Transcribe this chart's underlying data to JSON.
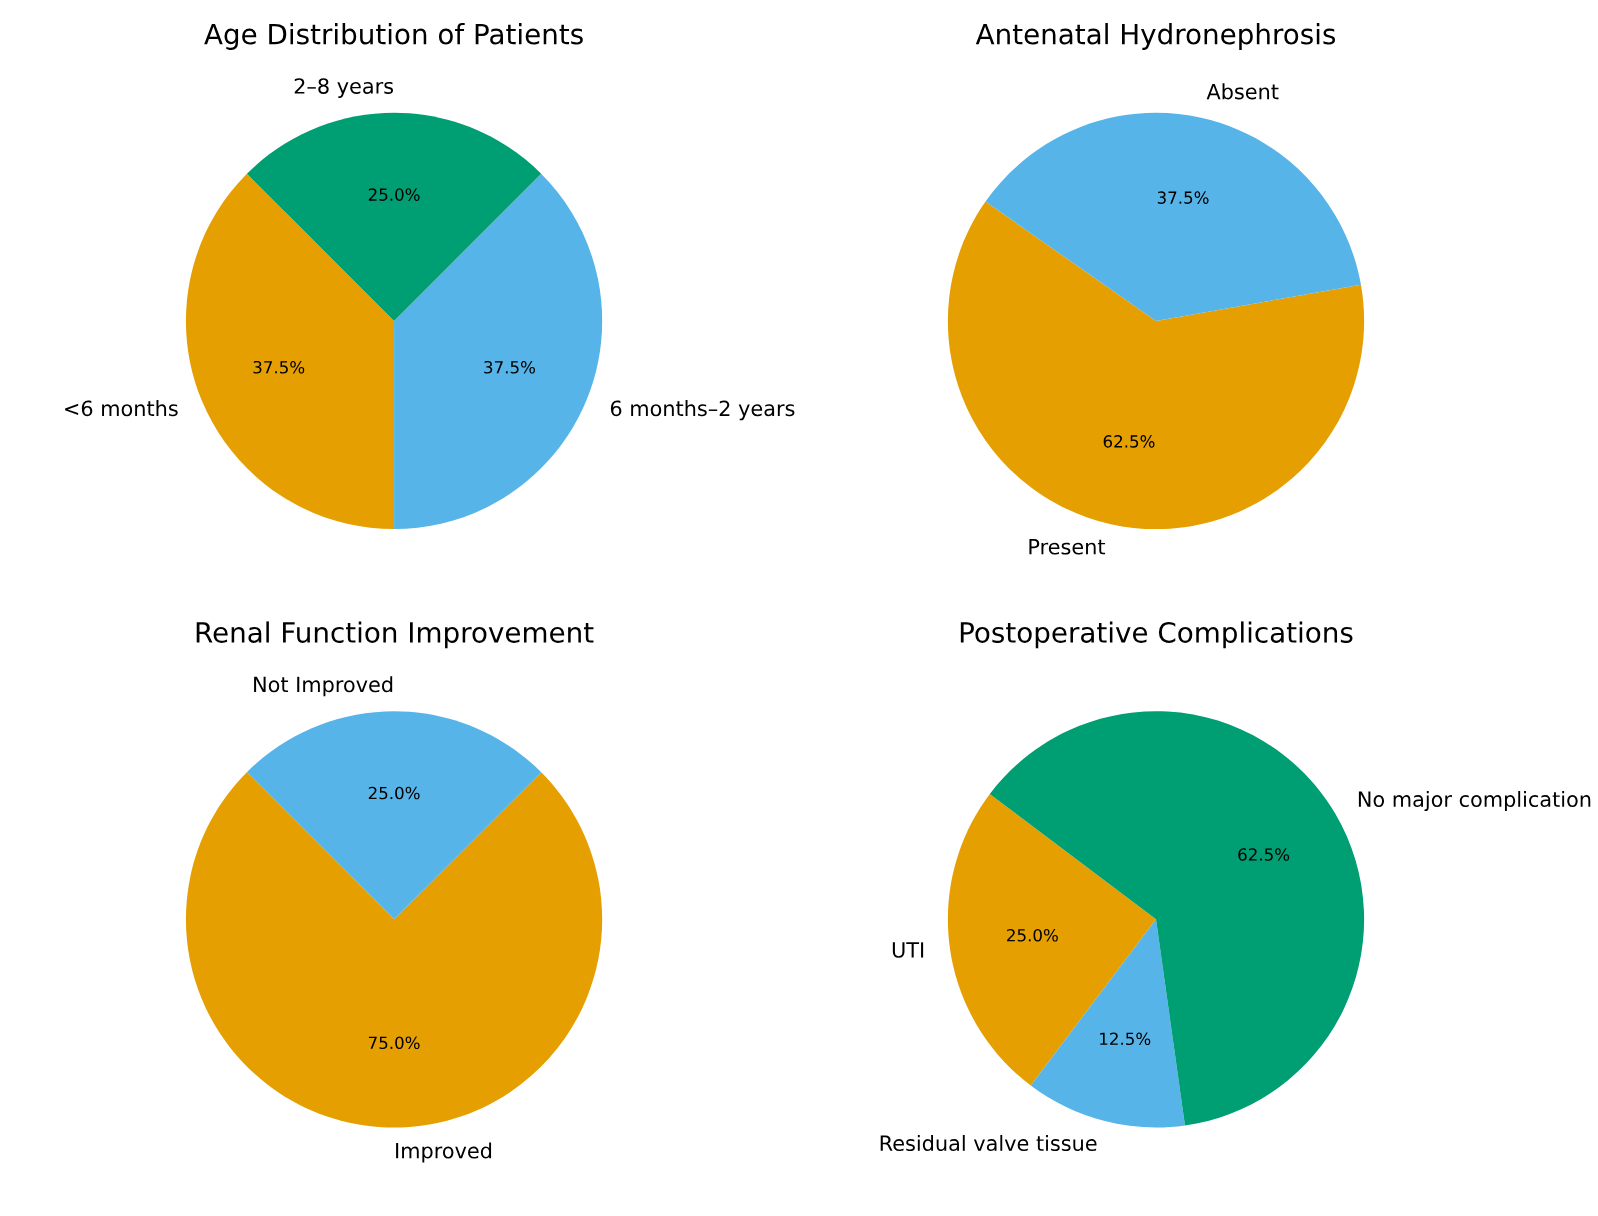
{
  "chart_data": [
    {
      "type": "pie",
      "title": "Age Distribution of Patients",
      "categories": [
        "<6 months",
        "6 months–2 years",
        "2–8 years"
      ],
      "values": [
        37.5,
        37.5,
        25.0
      ],
      "value_labels": [
        "37.5%",
        "37.5%",
        "25.0%"
      ],
      "colors": [
        "#e69f00",
        "#56b4e9",
        "#009e73"
      ]
    },
    {
      "type": "pie",
      "title": "Antenatal Hydronephrosis",
      "categories": [
        "Present",
        "Absent"
      ],
      "values": [
        62.5,
        37.5
      ],
      "value_labels": [
        "62.5%",
        "37.5%"
      ],
      "colors": [
        "#e69f00",
        "#56b4e9"
      ]
    },
    {
      "type": "pie",
      "title": "Renal Function Improvement",
      "categories": [
        "Improved",
        "Not Improved"
      ],
      "values": [
        75.0,
        25.0
      ],
      "value_labels": [
        "75.0%",
        "25.0%"
      ],
      "colors": [
        "#e69f00",
        "#56b4e9"
      ]
    },
    {
      "type": "pie",
      "title": "Postoperative Complications",
      "categories": [
        "UTI",
        "Residual valve tissue",
        "No major complication"
      ],
      "values": [
        25.0,
        12.5,
        62.5
      ],
      "value_labels": [
        "25.0%",
        "12.5%",
        "62.5%"
      ],
      "colors": [
        "#e69f00",
        "#56b4e9",
        "#009e73"
      ]
    }
  ]
}
